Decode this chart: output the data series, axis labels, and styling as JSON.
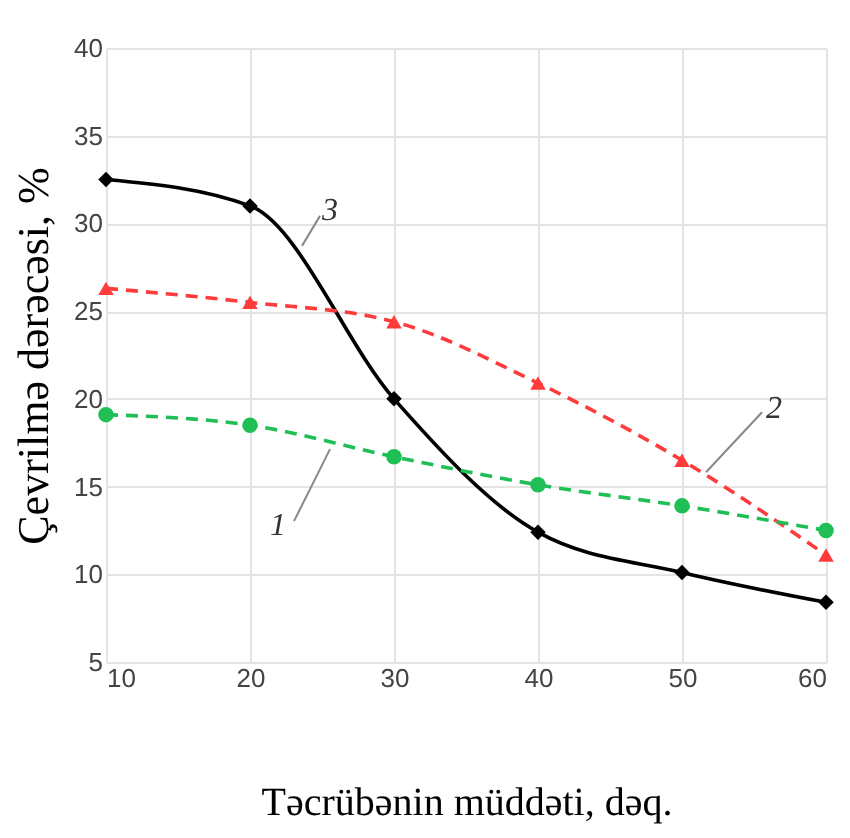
{
  "chart_data": {
    "type": "line",
    "xlabel": "Təcrübənin müddəti, dəq.",
    "ylabel": "Çevrilmə dərəcəsi, %",
    "x": [
      10,
      20,
      30,
      40,
      50,
      60
    ],
    "series": [
      {
        "name": "3",
        "color": "#000000",
        "marker": "diamond",
        "line_style": "solid",
        "values": [
          32.5,
          31.0,
          20.0,
          12.4,
          10.1,
          8.4
        ]
      },
      {
        "name": "2",
        "color": "#ff3b3b",
        "marker": "triangle",
        "line_style": "dashed",
        "values": [
          26.3,
          25.5,
          24.4,
          20.9,
          16.5,
          11.1
        ]
      },
      {
        "name": "1",
        "color": "#1fbf55",
        "marker": "circle",
        "line_style": "dashed",
        "values": [
          19.1,
          18.5,
          16.7,
          15.1,
          13.9,
          12.5
        ]
      }
    ],
    "xlim": [
      10,
      60
    ],
    "xticks": [
      10,
      20,
      30,
      40,
      50,
      60
    ],
    "ylim": [
      5,
      40
    ],
    "yticks": [
      5,
      10,
      15,
      20,
      25,
      30,
      35,
      40
    ],
    "grid": true
  }
}
